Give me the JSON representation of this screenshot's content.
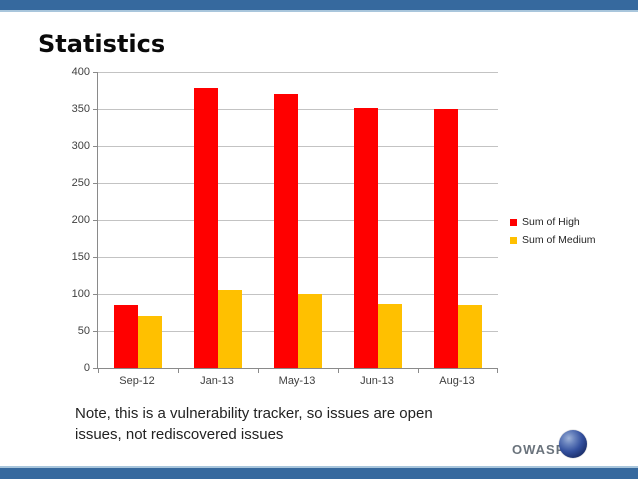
{
  "slide": {
    "title": "Statistics",
    "note": "Note, this is a vulnerability tracker, so issues are open issues, not rediscovered issues",
    "logo_text": "OWASP"
  },
  "theme": {
    "border_blue": "#36699E",
    "border_blue_light": "#A9C6DC",
    "high_red": "#FF0000",
    "medium_yellow": "#FFC000",
    "gridline_gray": "#C3C3C3",
    "axis_gray": "#8A8A8A",
    "tick_label_gray": "#3F3F3F",
    "logo_gray": "#6A737C"
  },
  "chart_data": {
    "type": "bar",
    "categories": [
      "Sep-12",
      "Jan-13",
      "May-13",
      "Jun-13",
      "Aug-13"
    ],
    "series": [
      {
        "name": "Sum of High",
        "color": "#FF0000",
        "values": [
          85,
          378,
          370,
          352,
          350
        ]
      },
      {
        "name": "Sum of Medium",
        "color": "#FFC000",
        "values": [
          70,
          105,
          100,
          87,
          85
        ]
      }
    ],
    "title": "",
    "xlabel": "",
    "ylabel": "",
    "ylim": [
      0,
      400
    ],
    "ytick_step": 50,
    "grid": true,
    "legend_position": "right"
  }
}
